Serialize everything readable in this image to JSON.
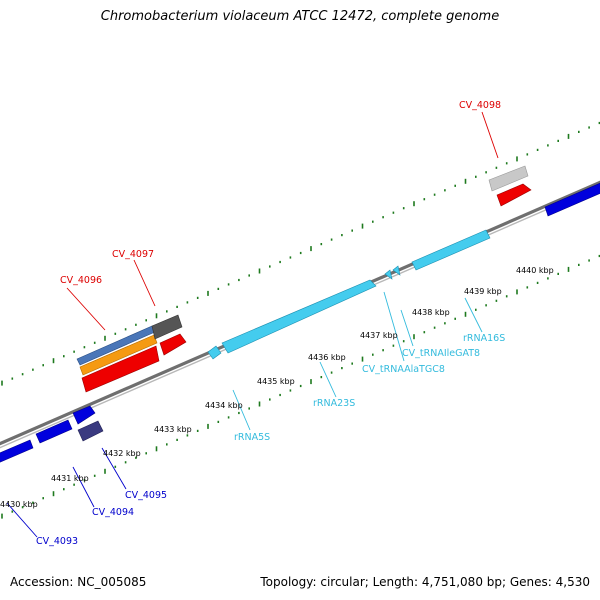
{
  "title": "Chromobacterium violaceum ATCC 12472, complete genome",
  "footer": {
    "accession": "Accession: NC_005085",
    "topology": "Topology: circular; Length: 4,751,080 bp; Genes: 4,530"
  },
  "colors": {
    "backbone": "#777777",
    "tick": "#1e7a1e",
    "gene_forward_red": "#ee0000",
    "gene_reverse_blue": "#0000dd",
    "rna": "#44ccee",
    "label_red": "#dd0000",
    "label_blue": "#0000cc",
    "label_rna": "#33bbdd"
  },
  "scale_labels": [
    "4430 kbp",
    "4431 kbp",
    "4432 kbp",
    "4433 kbp",
    "4434 kbp",
    "4435 kbp",
    "4436 kbp",
    "4437 kbp",
    "4438 kbp",
    "4439 kbp",
    "4440 kbp"
  ],
  "gene_labels": {
    "cv4093": "CV_4093",
    "cv4094": "CV_4094",
    "cv4095": "CV_4095",
    "cv4096": "CV_4096",
    "cv4097": "CV_4097",
    "cv4098": "CV_4098",
    "rrna5s": "rRNA5S",
    "rrna23s": "rRNA23S",
    "trna_ala": "CV_tRNAAlaTGC8",
    "trna_ile": "CV_tRNAIleGAT8",
    "rrna16s": "rRNA16S"
  }
}
